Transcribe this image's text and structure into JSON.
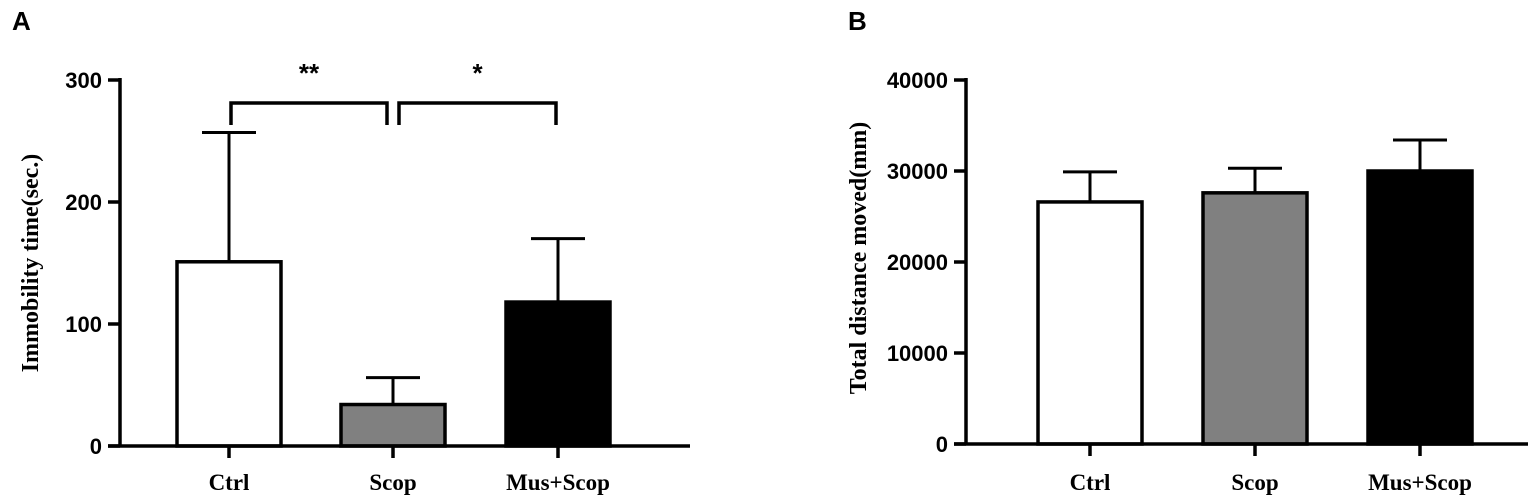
{
  "chart_data": [
    {
      "panel": "A",
      "type": "bar",
      "ylabel": "Immobility time(sec.)",
      "xlabel": "",
      "ylim": [
        0,
        300
      ],
      "yticks": [
        0,
        100,
        200,
        300
      ],
      "categories": [
        "Ctrl",
        "Scop",
        "Mus+Scop"
      ],
      "values": [
        151,
        34,
        118
      ],
      "errors": [
        106,
        22,
        52
      ],
      "bar_colors": [
        "#ffffff",
        "#808080",
        "#000000"
      ],
      "significance": [
        {
          "from": 0,
          "to": 1,
          "label": "**"
        },
        {
          "from": 1,
          "to": 2,
          "label": "*"
        }
      ]
    },
    {
      "panel": "B",
      "type": "bar",
      "ylabel": "Total distance moved(mm)",
      "xlabel": "",
      "ylim": [
        0,
        40000
      ],
      "yticks": [
        0,
        10000,
        20000,
        30000,
        40000
      ],
      "categories": [
        "Ctrl",
        "Scop",
        "Mus+Scop"
      ],
      "values": [
        26600,
        27600,
        30000
      ],
      "errors": [
        3300,
        2700,
        3400
      ],
      "bar_colors": [
        "#ffffff",
        "#808080",
        "#000000"
      ],
      "significance": []
    }
  ]
}
